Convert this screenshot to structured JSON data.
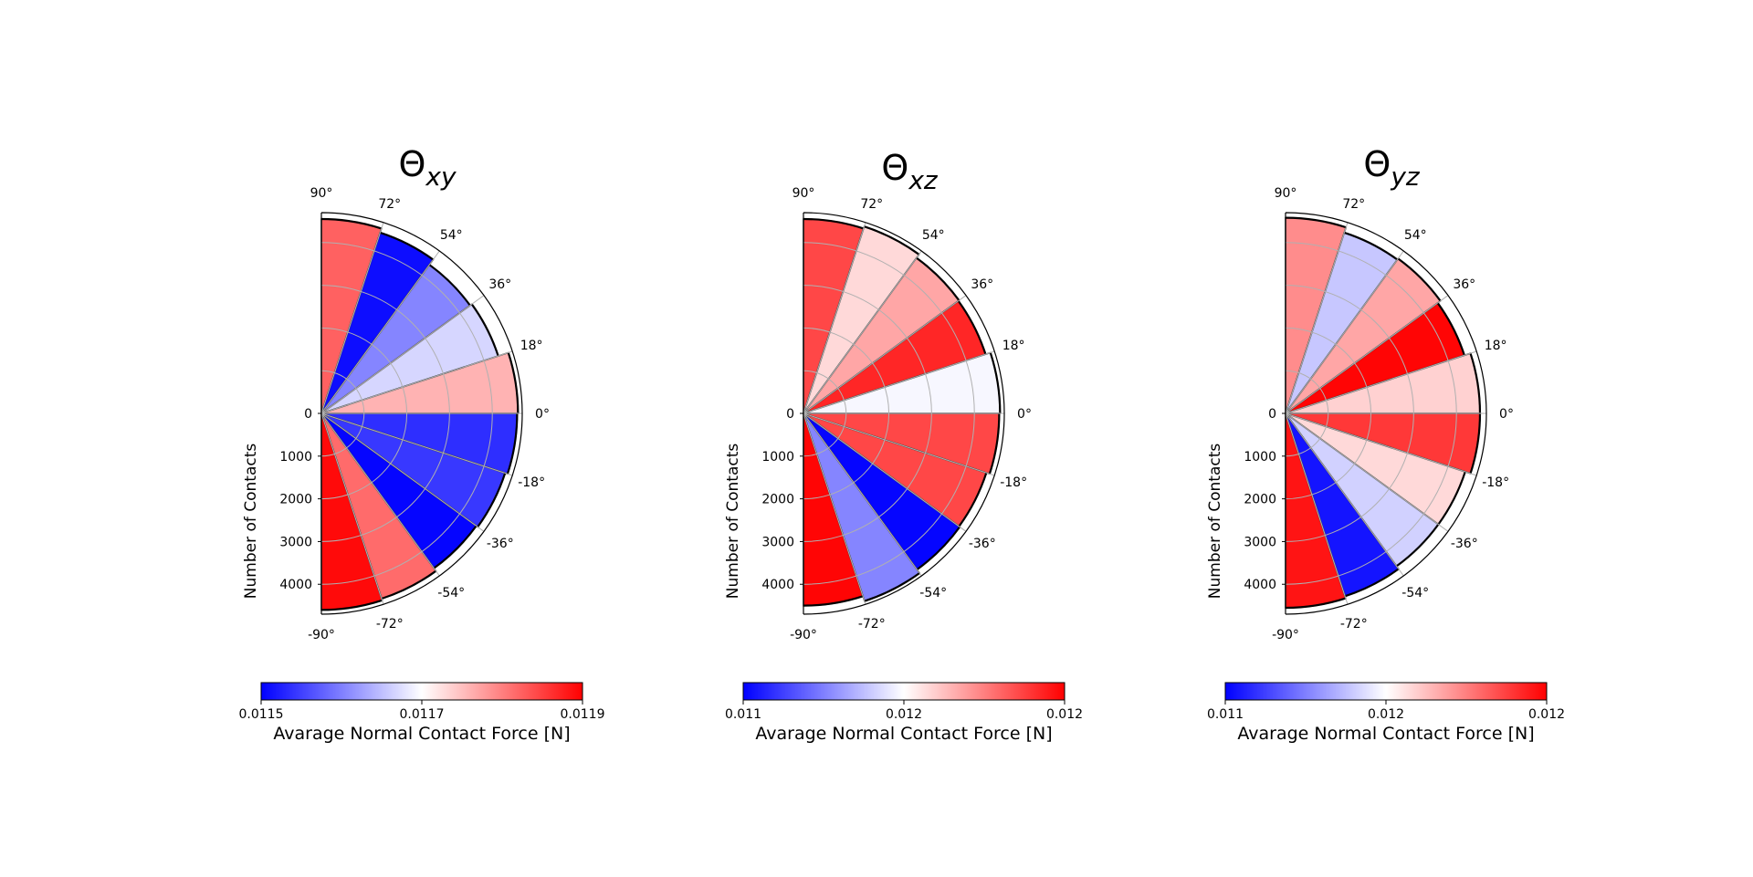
{
  "cmap": {
    "low": "#0000ff",
    "mid": "#ffffff",
    "high": "#ff0000"
  },
  "chart_data": [
    {
      "type": "polar-bar",
      "title_base": "Θ",
      "title_sub": "xy",
      "angle_range": [
        -90,
        90
      ],
      "angle_ticks": [
        "90°",
        "72°",
        "54°",
        "36°",
        "18°",
        "0°",
        "-18°",
        "-36°",
        "-54°",
        "-72°",
        "-90°"
      ],
      "radial_ticks": [
        "0",
        "1000",
        "2000",
        "3000",
        "4000"
      ],
      "rmax": 4700,
      "ylabel": "Number of Contacts",
      "bins_center_deg": [
        81,
        63,
        45,
        27,
        9,
        -9,
        -27,
        -45,
        -63,
        -81
      ],
      "counts": [
        4550,
        4450,
        4300,
        4350,
        4600,
        4580,
        4520,
        4480,
        4560,
        4600
      ],
      "colorbar": {
        "label": "Avarage Normal Contact Force [N]",
        "ticks": [
          "0.0115",
          "0.0117",
          "0.0119"
        ]
      },
      "color_values": [
        0.62,
        -0.95,
        -0.48,
        -0.16,
        0.3,
        -0.82,
        -0.78,
        -0.98,
        0.58,
        0.96
      ]
    },
    {
      "type": "polar-bar",
      "title_base": "Θ",
      "title_sub": "xz",
      "angle_range": [
        -90,
        90
      ],
      "angle_ticks": [
        "90°",
        "72°",
        "54°",
        "36°",
        "18°",
        "0°",
        "-18°",
        "-36°",
        "-54°",
        "-72°",
        "-90°"
      ],
      "radial_ticks": [
        "0",
        "1000",
        "2000",
        "3000",
        "4000"
      ],
      "rmax": 4700,
      "ylabel": "Number of Contacts",
      "bins_center_deg": [
        81,
        63,
        45,
        27,
        9,
        -9,
        -27,
        -45,
        -63,
        -81
      ],
      "counts": [
        4550,
        4600,
        4500,
        4480,
        4600,
        4580,
        4500,
        4520,
        4620,
        4500
      ],
      "colorbar": {
        "label": "Avarage Normal Contact Force [N]",
        "ticks": [
          "0.011",
          "0.012",
          "0.012"
        ]
      },
      "color_values": [
        0.72,
        0.15,
        0.35,
        0.85,
        -0.03,
        0.72,
        0.72,
        -0.98,
        -0.48,
        0.98
      ]
    },
    {
      "type": "polar-bar",
      "title_base": "Θ",
      "title_sub": "yz",
      "angle_range": [
        -90,
        90
      ],
      "angle_ticks": [
        "90°",
        "72°",
        "54°",
        "36°",
        "18°",
        "0°",
        "-18°",
        "-36°",
        "-54°",
        "-72°",
        "-90°"
      ],
      "radial_ticks": [
        "0",
        "1000",
        "2000",
        "3000",
        "4000"
      ],
      "rmax": 4700,
      "ylabel": "Number of Contacts",
      "bins_center_deg": [
        81,
        63,
        45,
        27,
        9,
        -9,
        -27,
        -45,
        -63,
        -81
      ],
      "counts": [
        4580,
        4450,
        4480,
        4400,
        4550,
        4550,
        4420,
        4420,
        4500,
        4550
      ],
      "colorbar": {
        "label": "Avarage Normal Contact Force [N]",
        "ticks": [
          "0.011",
          "0.012",
          "0.012"
        ]
      },
      "color_values": [
        0.45,
        -0.22,
        0.35,
        0.98,
        0.18,
        0.78,
        0.15,
        -0.18,
        -0.92,
        0.92
      ]
    }
  ]
}
